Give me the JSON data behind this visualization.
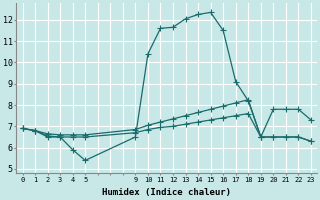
{
  "xlabel": "Humidex (Indice chaleur)",
  "bg_color": "#c8e8e8",
  "line_color": "#1a6b6b",
  "grid_color": "#b0d8d8",
  "grid_white_color": "#ffffff",
  "xlim": [
    -0.5,
    23.5
  ],
  "ylim": [
    4.8,
    12.8
  ],
  "x_grid_all": [
    0,
    1,
    2,
    3,
    4,
    5,
    6,
    7,
    8,
    9,
    10,
    11,
    12,
    13,
    14,
    15,
    16,
    17,
    18,
    19,
    20,
    21,
    22,
    23
  ],
  "y_grid_all": [
    5,
    6,
    7,
    8,
    9,
    10,
    11,
    12
  ],
  "xtick_labels": [
    0,
    1,
    2,
    3,
    4,
    5,
    "",
    "",
    "",
    9,
    10,
    11,
    12,
    13,
    14,
    15,
    16,
    17,
    18,
    19,
    20,
    21,
    22,
    23
  ],
  "yticks": [
    5,
    6,
    7,
    8,
    9,
    10,
    11,
    12
  ],
  "line1_x": [
    0,
    1,
    2,
    3,
    4,
    5,
    9,
    10,
    11,
    12,
    13,
    14,
    15,
    16,
    17,
    18,
    19,
    20,
    21,
    22,
    23
  ],
  "line1_y": [
    6.9,
    6.8,
    6.5,
    6.5,
    5.9,
    5.4,
    6.5,
    10.4,
    11.6,
    11.65,
    12.05,
    12.25,
    12.35,
    11.5,
    9.1,
    8.2,
    6.5,
    6.5,
    6.5,
    6.5,
    6.3
  ],
  "line2_x": [
    0,
    1,
    2,
    3,
    4,
    5,
    9,
    10,
    11,
    12,
    13,
    14,
    15,
    16,
    17,
    18,
    19,
    20,
    21,
    22,
    23
  ],
  "line2_y": [
    6.9,
    6.8,
    6.65,
    6.6,
    6.6,
    6.6,
    6.85,
    7.05,
    7.2,
    7.35,
    7.5,
    7.65,
    7.8,
    7.95,
    8.1,
    8.25,
    6.5,
    7.8,
    7.8,
    7.8,
    7.3
  ],
  "line3_x": [
    0,
    1,
    2,
    3,
    4,
    5,
    9,
    10,
    11,
    12,
    13,
    14,
    15,
    16,
    17,
    18,
    19,
    20,
    21,
    22,
    23
  ],
  "line3_y": [
    6.9,
    6.8,
    6.55,
    6.5,
    6.5,
    6.5,
    6.7,
    6.85,
    6.95,
    7.0,
    7.1,
    7.2,
    7.3,
    7.4,
    7.5,
    7.6,
    6.5,
    6.5,
    6.5,
    6.5,
    6.3
  ]
}
